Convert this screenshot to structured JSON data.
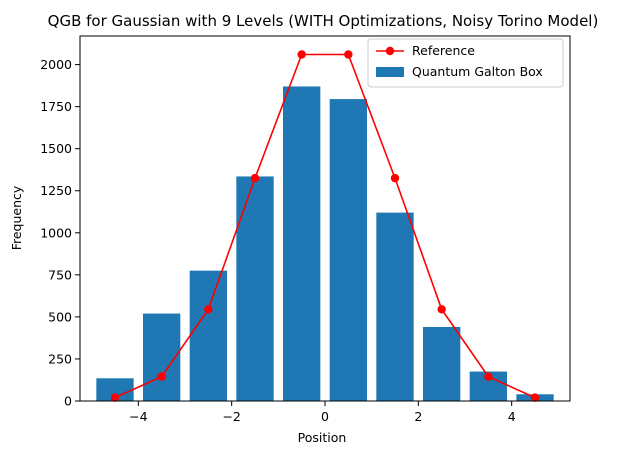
{
  "chart_data": {
    "type": "bar",
    "title": "QGB for Gaussian with 9 Levels (WITH Optimizations, Noisy Torino Model)",
    "xlabel": "Position",
    "ylabel": "Frequency",
    "xlim": [
      -5.25,
      5.25
    ],
    "ylim": [
      0,
      2170
    ],
    "xticks": [
      -4,
      -2,
      0,
      2,
      4
    ],
    "xtick_labels": [
      "−4",
      "−2",
      "0",
      "2",
      "4"
    ],
    "yticks": [
      0,
      250,
      500,
      750,
      1000,
      1250,
      1500,
      1750,
      2000
    ],
    "ytick_labels": [
      "0",
      "250",
      "500",
      "750",
      "1000",
      "1250",
      "1500",
      "1750",
      "2000"
    ],
    "grid": false,
    "legend_position": "top-right",
    "bar_width": 0.8,
    "series": [
      {
        "name": "Quantum Galton Box",
        "type": "bar",
        "color": "#1f77b4",
        "x": [
          -4.5,
          -3.5,
          -2.5,
          -1.5,
          -0.5,
          0.5,
          1.5,
          2.5,
          3.5,
          4.5
        ],
        "values": [
          135,
          520,
          775,
          1335,
          1870,
          1795,
          1120,
          440,
          175,
          40
        ]
      },
      {
        "name": "Reference",
        "type": "line",
        "color": "#ff0000",
        "x": [
          -4.5,
          -3.5,
          -2.5,
          -1.5,
          -0.5,
          0.5,
          1.5,
          2.5,
          3.5,
          4.5
        ],
        "values": [
          20,
          145,
          545,
          1325,
          2060,
          2060,
          1325,
          545,
          145,
          20
        ]
      }
    ]
  }
}
